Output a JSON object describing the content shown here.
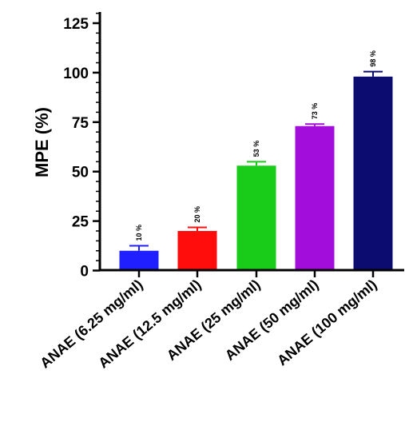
{
  "chart_data": {
    "type": "bar",
    "title": "",
    "xlabel": "",
    "ylabel": "MPE (%)",
    "ylim": [
      0,
      125
    ],
    "yticks": [
      0,
      25,
      50,
      75,
      100,
      125
    ],
    "ytick_labels": [
      "0",
      "25",
      "50",
      "75",
      "100",
      "125"
    ],
    "grid": false,
    "categories": [
      "ANAE (6.25 mg/ml)",
      "ANAE (12.5 mg/ml)",
      "ANAE (25 mg/ml)",
      "ANAE (50 mg/ml)",
      "ANAE (100 mg/ml)"
    ],
    "values": [
      10,
      20,
      53,
      73,
      98
    ],
    "errors": [
      2.5,
      1.8,
      2.0,
      1.0,
      2.5
    ],
    "data_labels": [
      "10 %",
      "20 %",
      "53 %",
      "73 %",
      "98 %"
    ],
    "colors": [
      "#1f1fff",
      "#ff0d0d",
      "#19cc19",
      "#a30ddc",
      "#0c0c70"
    ]
  }
}
